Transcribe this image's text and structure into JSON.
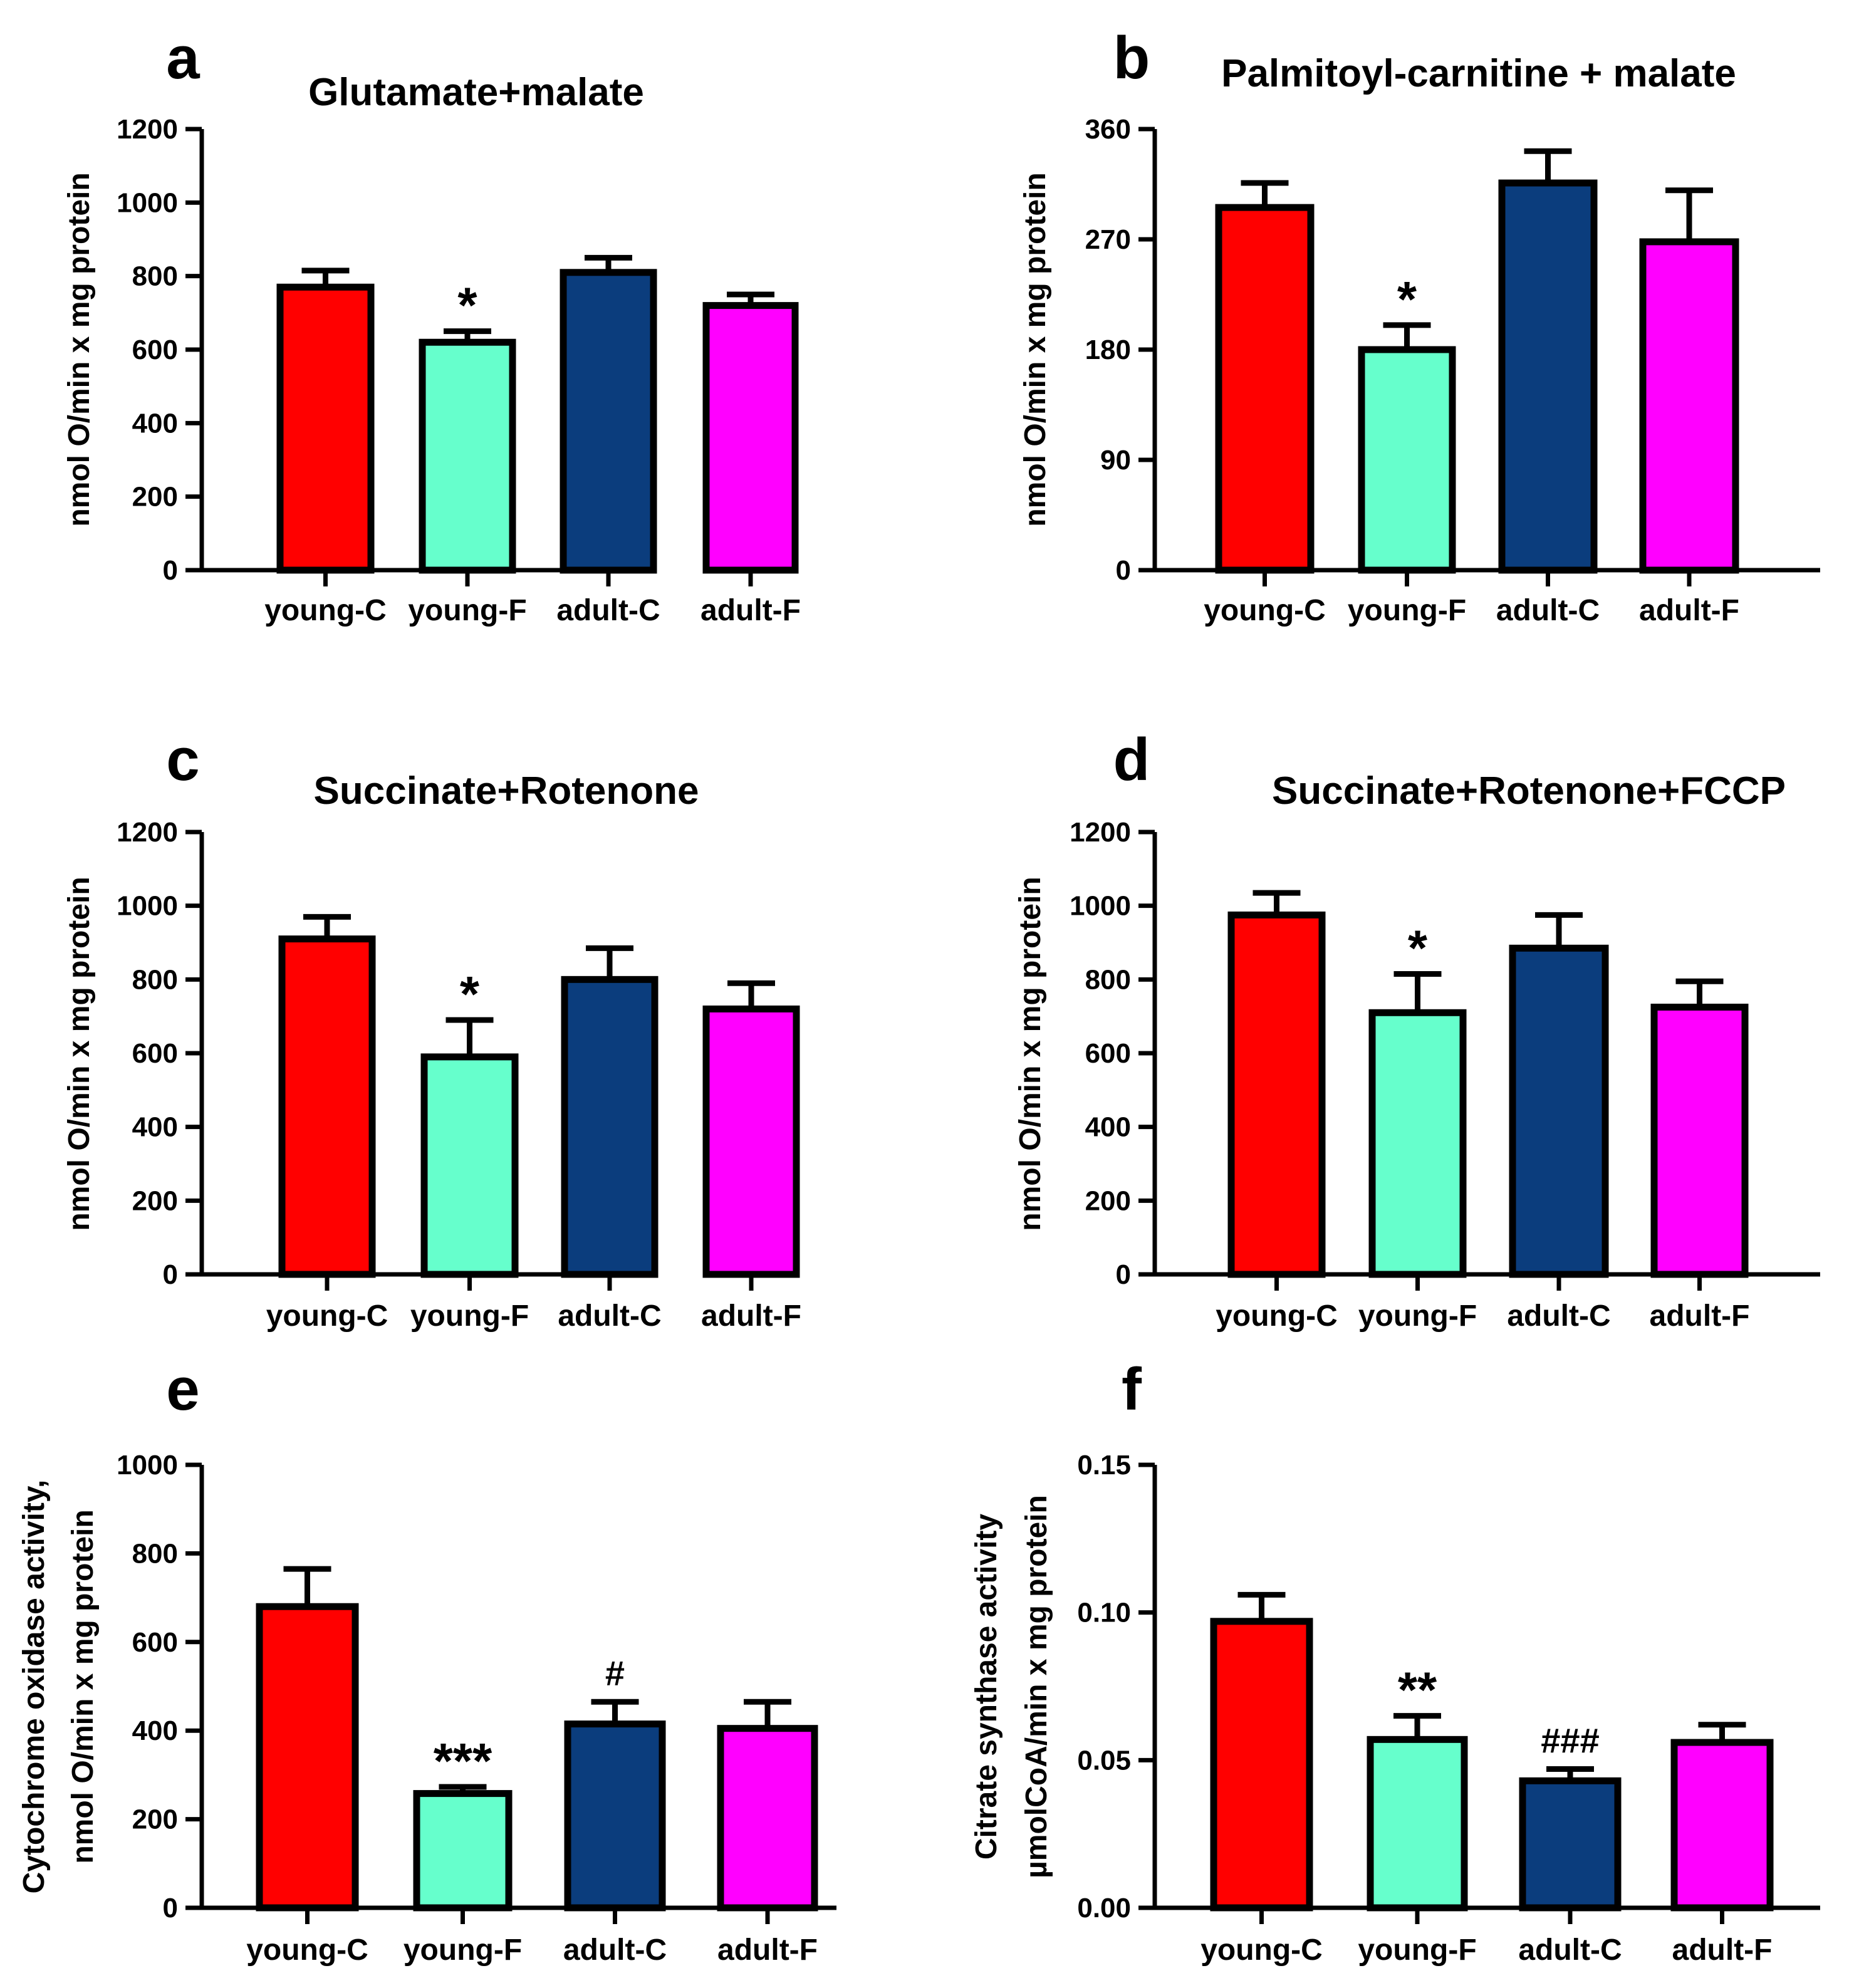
{
  "chart_data": [
    {
      "panel_letter": "a",
      "type": "bar",
      "title": "Glutamate+malate",
      "ylabel": "nmol O/min x mg protein",
      "ylabel_line2": "",
      "categories": [
        "young-C",
        "young-F",
        "adult-C",
        "adult-F"
      ],
      "colors": [
        "#ff0000",
        "#66ffcc",
        "#0b3d7d",
        "#ff00ff"
      ],
      "values": [
        770,
        620,
        810,
        720
      ],
      "errors": [
        45,
        30,
        40,
        30
      ],
      "annotations": [
        "",
        "*",
        "",
        ""
      ],
      "ylim": [
        0,
        1200
      ],
      "yticks": [
        0,
        200,
        400,
        600,
        800,
        1000,
        1200
      ],
      "ytick_labels": [
        "0",
        "200",
        "400",
        "600",
        "800",
        "1000",
        "1200"
      ]
    },
    {
      "panel_letter": "b",
      "type": "bar",
      "title": "Palmitoyl-carnitine + malate",
      "ylabel": "nmol O/min x mg protein",
      "ylabel_line2": "",
      "categories": [
        "young-C",
        "young-F",
        "adult-C",
        "adult-F"
      ],
      "colors": [
        "#ff0000",
        "#66ffcc",
        "#0b3d7d",
        "#ff00ff"
      ],
      "values": [
        296,
        180,
        316,
        268
      ],
      "errors": [
        20,
        20,
        26,
        42
      ],
      "annotations": [
        "",
        "*",
        "",
        ""
      ],
      "ylim": [
        0,
        360
      ],
      "yticks": [
        0,
        90,
        180,
        270,
        360
      ],
      "ytick_labels": [
        "0",
        "90",
        "180",
        "270",
        "360"
      ]
    },
    {
      "panel_letter": "c",
      "type": "bar",
      "title": "Succinate+Rotenone",
      "ylabel": "nmol O/min x mg protein",
      "ylabel_line2": "",
      "categories": [
        "young-C",
        "young-F",
        "adult-C",
        "adult-F"
      ],
      "colors": [
        "#ff0000",
        "#66ffcc",
        "#0b3d7d",
        "#ff00ff"
      ],
      "values": [
        910,
        590,
        800,
        720
      ],
      "errors": [
        60,
        100,
        85,
        70
      ],
      "annotations": [
        "",
        "*",
        "",
        ""
      ],
      "ylim": [
        0,
        1200
      ],
      "yticks": [
        0,
        200,
        400,
        600,
        800,
        1000,
        1200
      ],
      "ytick_labels": [
        "0",
        "200",
        "400",
        "600",
        "800",
        "1000",
        "1200"
      ]
    },
    {
      "panel_letter": "d",
      "type": "bar",
      "title": "Succinate+Rotenone+FCCP",
      "ylabel": "nmol O/min x mg protein",
      "ylabel_line2": "",
      "categories": [
        "young-C",
        "young-F",
        "adult-C",
        "adult-F"
      ],
      "colors": [
        "#ff0000",
        "#66ffcc",
        "#0b3d7d",
        "#ff00ff"
      ],
      "values": [
        975,
        710,
        885,
        725
      ],
      "errors": [
        60,
        105,
        90,
        70
      ],
      "annotations": [
        "",
        "*",
        "",
        ""
      ],
      "ylim": [
        0,
        1200
      ],
      "yticks": [
        0,
        200,
        400,
        600,
        800,
        1000,
        1200
      ],
      "ytick_labels": [
        "0",
        "200",
        "400",
        "600",
        "800",
        "1000",
        "1200"
      ]
    },
    {
      "panel_letter": "e",
      "type": "bar",
      "title": "",
      "ylabel": "Cytochrome oxidase activity,",
      "ylabel_line2": "nmol O/min x mg protein",
      "categories": [
        "young-C",
        "young-F",
        "adult-C",
        "adult-F"
      ],
      "colors": [
        "#ff0000",
        "#66ffcc",
        "#0b3d7d",
        "#ff00ff"
      ],
      "values": [
        680,
        258,
        415,
        405
      ],
      "errors": [
        85,
        15,
        50,
        60
      ],
      "annotations": [
        "",
        "***",
        "#",
        ""
      ],
      "ylim": [
        0,
        1000
      ],
      "yticks": [
        0,
        200,
        400,
        600,
        800,
        1000
      ],
      "ytick_labels": [
        "0",
        "200",
        "400",
        "600",
        "800",
        "1000"
      ]
    },
    {
      "panel_letter": "f",
      "type": "bar",
      "title": "",
      "ylabel": "Citrate synthase activity",
      "ylabel_line2": "µmolCoA/min x mg protein",
      "categories": [
        "young-C",
        "young-F",
        "adult-C",
        "adult-F"
      ],
      "colors": [
        "#ff0000",
        "#66ffcc",
        "#0b3d7d",
        "#ff00ff"
      ],
      "values": [
        0.097,
        0.057,
        0.043,
        0.056
      ],
      "errors": [
        0.009,
        0.008,
        0.004,
        0.006
      ],
      "annotations": [
        "",
        "**",
        "###",
        ""
      ],
      "ylim": [
        0,
        0.15
      ],
      "yticks": [
        0,
        0.05,
        0.1,
        0.15
      ],
      "ytick_labels": [
        "0.00",
        "0.05",
        "0.10",
        "0.15"
      ]
    }
  ]
}
